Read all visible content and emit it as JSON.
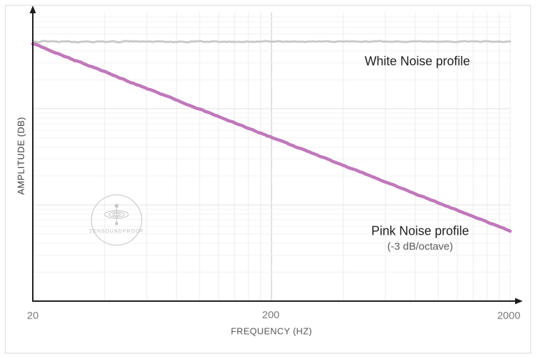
{
  "watermark": {
    "text": "ZENSOUNDPROOF",
    "icon": "ripple-drop-icon"
  },
  "chart_data": {
    "type": "line",
    "title": "",
    "x_axis": {
      "label": "FREQUENCY (HZ)",
      "scale": "log",
      "min_hz": 20,
      "max_hz": 2000,
      "tick_labels": [
        "20",
        "200",
        "2000"
      ],
      "major_gridline_hz": 200,
      "minor_gridlines_hz": [
        40,
        60,
        80,
        100,
        120,
        140,
        160,
        180,
        400,
        600,
        800,
        1000,
        1200,
        1400,
        1600,
        1800,
        2000
      ]
    },
    "y_axis": {
      "label": "AMPLITUDE (DB)",
      "scale": "log-decades",
      "tick_labels": []
    },
    "series": [
      {
        "name": "White Noise profile",
        "color": "#c9c9c9",
        "slope_db_per_octave": 0,
        "start_db": 0,
        "end_db": 0
      },
      {
        "name": "Pink Noise profile",
        "slope_label": "(-3 dB/octave)",
        "color": "#c078bb",
        "slope_db_per_octave": -3,
        "start_db": 0,
        "end_db": -19.9
      }
    ],
    "grid": true,
    "legend_position": "inline-annotations"
  }
}
